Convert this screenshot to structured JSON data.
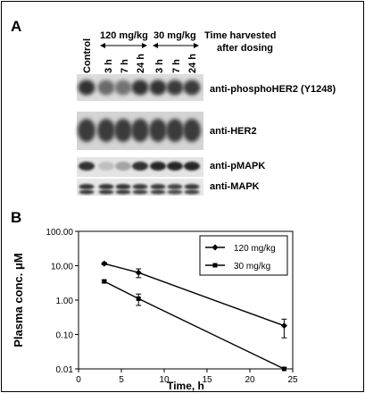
{
  "panel_a": {
    "letter": "A",
    "lanes": {
      "control": "Control",
      "times": [
        "3 h",
        "7 h",
        "24 h",
        "3 h",
        "7 h",
        "24 h"
      ]
    },
    "doses": [
      {
        "label": "120 mg/kg"
      },
      {
        "label": "30 mg/kg"
      }
    ],
    "time_note": [
      "Time harvested",
      "after dosing"
    ],
    "blots": [
      {
        "label": "anti-phosphoHER2 (Y1248)",
        "intensity": [
          0.85,
          0.55,
          0.5,
          0.85,
          0.85,
          0.8,
          0.8
        ]
      },
      {
        "label": "anti-HER2",
        "intensity": [
          0.8,
          0.8,
          0.8,
          0.8,
          0.8,
          0.8,
          0.8
        ]
      },
      {
        "label": "anti-pMAPK",
        "intensity": [
          0.85,
          0.1,
          0.25,
          0.85,
          0.9,
          0.9,
          0.9
        ]
      },
      {
        "label": "anti-MAPK",
        "intensity": [
          0.85,
          0.85,
          0.85,
          0.8,
          0.8,
          0.75,
          0.8
        ]
      }
    ]
  },
  "panel_b": {
    "letter": "B",
    "chart_data": {
      "type": "line",
      "xlabel": "Time, h",
      "ylabel": "Plasma conc. μM",
      "x_scale": "linear",
      "y_scale": "log",
      "xlim": [
        0,
        25
      ],
      "ylim": [
        0.01,
        100
      ],
      "x_ticks": [
        "0",
        "5",
        "10",
        "15",
        "20",
        "25"
      ],
      "y_ticks": [
        "0.01",
        "0.10",
        "1.00",
        "10.00",
        "100.00"
      ],
      "legend_position": "top-right",
      "series": [
        {
          "name": "120 mg/kg",
          "marker": "diamond",
          "x": [
            3,
            7,
            24
          ],
          "y": [
            11.5,
            6.3,
            0.18
          ],
          "err": [
            0.8,
            1.8,
            0.1
          ]
        },
        {
          "name": "30 mg/kg",
          "marker": "square",
          "x": [
            3,
            7,
            24
          ],
          "y": [
            3.5,
            1.1,
            0.01
          ],
          "err": [
            0.3,
            0.4,
            0.001
          ]
        }
      ]
    }
  }
}
